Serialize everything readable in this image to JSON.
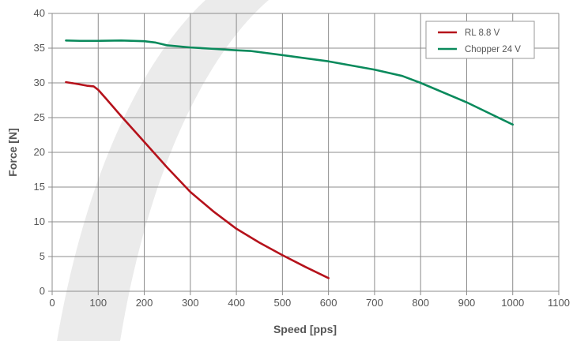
{
  "chart_data": {
    "type": "line",
    "title": "",
    "xlabel": "Speed [pps]",
    "ylabel": "Force [N]",
    "xlim": [
      0,
      1100
    ],
    "ylim": [
      0,
      40
    ],
    "xticks": [
      0,
      100,
      200,
      300,
      400,
      500,
      600,
      700,
      800,
      900,
      1000,
      1100
    ],
    "yticks": [
      0,
      5,
      10,
      15,
      20,
      25,
      30,
      35,
      40
    ],
    "grid": true,
    "legend_position": "top-right",
    "series": [
      {
        "name": "RL 8.8 V",
        "color": "#b5121b",
        "points": [
          [
            30,
            30.1
          ],
          [
            50,
            29.9
          ],
          [
            75,
            29.6
          ],
          [
            90,
            29.5
          ],
          [
            100,
            29.0
          ],
          [
            120,
            27.5
          ],
          [
            150,
            25.2
          ],
          [
            200,
            21.5
          ],
          [
            250,
            17.8
          ],
          [
            300,
            14.3
          ],
          [
            350,
            11.5
          ],
          [
            400,
            9.0
          ],
          [
            450,
            7.0
          ],
          [
            500,
            5.2
          ],
          [
            550,
            3.5
          ],
          [
            600,
            1.9
          ]
        ]
      },
      {
        "name": "Chopper 24 V",
        "color": "#0a8a5c",
        "points": [
          [
            30,
            36.1
          ],
          [
            60,
            36.05
          ],
          [
            100,
            36.05
          ],
          [
            150,
            36.1
          ],
          [
            200,
            36.0
          ],
          [
            225,
            35.8
          ],
          [
            250,
            35.4
          ],
          [
            300,
            35.1
          ],
          [
            350,
            34.9
          ],
          [
            400,
            34.7
          ],
          [
            430,
            34.6
          ],
          [
            500,
            34.0
          ],
          [
            600,
            33.1
          ],
          [
            700,
            31.9
          ],
          [
            760,
            31.0
          ],
          [
            800,
            30.0
          ],
          [
            900,
            27.2
          ],
          [
            1000,
            24.0
          ]
        ]
      }
    ]
  }
}
